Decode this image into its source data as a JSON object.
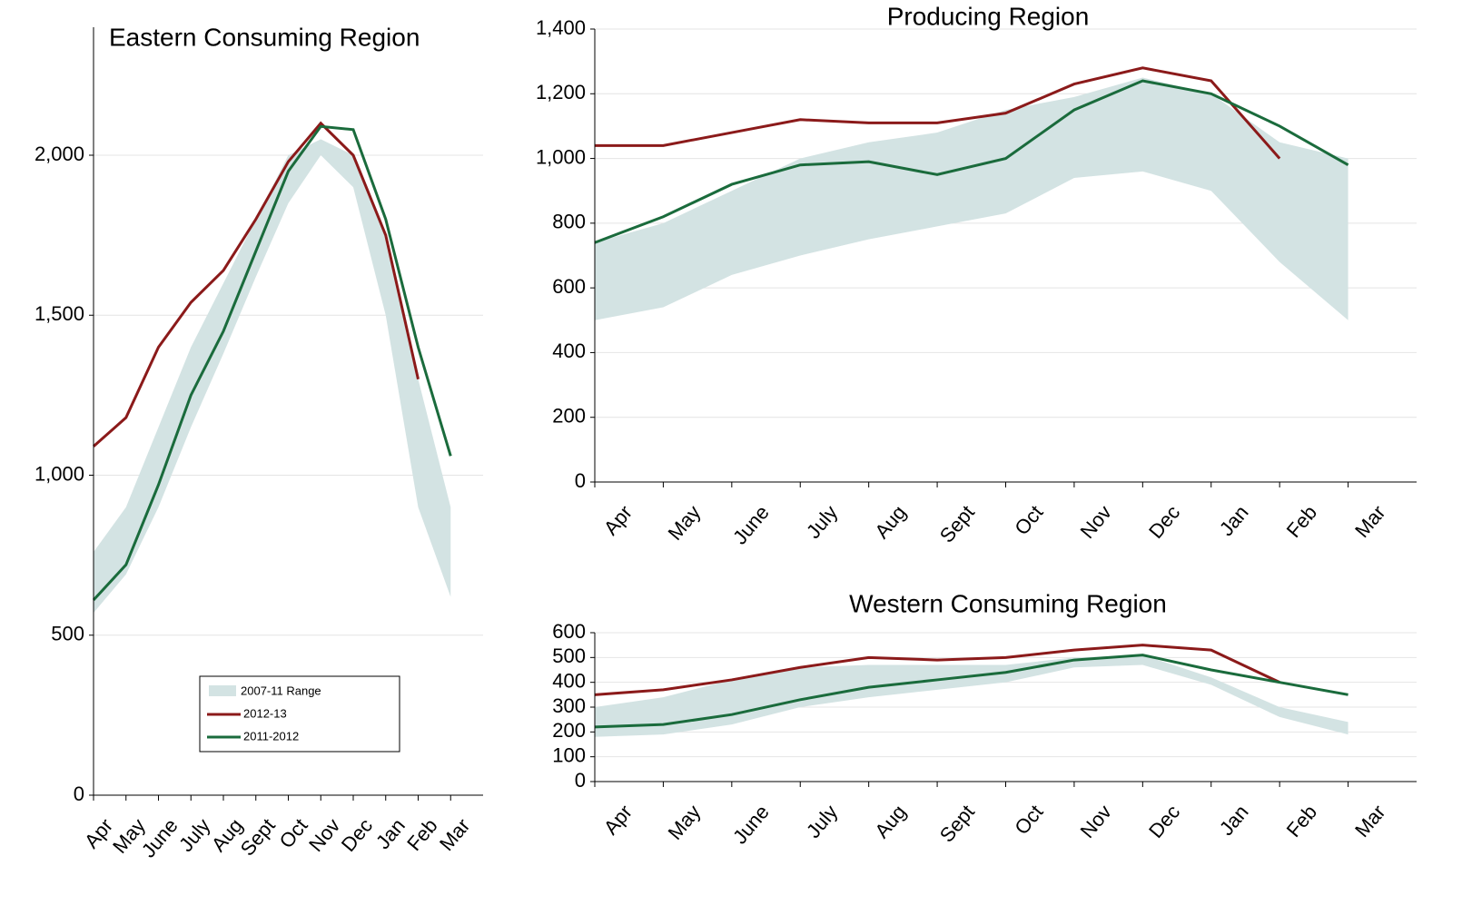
{
  "chart_data": [
    {
      "type": "line",
      "title": "Eastern Consuming Region",
      "categories": [
        "Apr",
        "May",
        "June",
        "July",
        "Aug",
        "Sept",
        "Oct",
        "Nov",
        "Dec",
        "Jan",
        "Feb",
        "Mar"
      ],
      "band": {
        "name": "2007-11 Range",
        "color": "#d3e3e3",
        "low": [
          570,
          690,
          900,
          1150,
          1380,
          1620,
          1850,
          2000,
          1900,
          1500,
          900,
          620
        ],
        "high": [
          760,
          900,
          1150,
          1400,
          1600,
          1800,
          2000,
          2050,
          2000,
          1750,
          1300,
          900
        ]
      },
      "series": [
        {
          "name": "2012-13",
          "color": "#8b1a1a",
          "values": [
            1090,
            1180,
            1400,
            1540,
            1640,
            1800,
            1980,
            2100,
            2000,
            1750,
            1300,
            null
          ]
        },
        {
          "name": "2011-2012",
          "color": "#1a6b3c",
          "values": [
            610,
            720,
            970,
            1250,
            1450,
            1700,
            1950,
            2090,
            2080,
            1800,
            1400,
            1060
          ]
        }
      ],
      "ylim": [
        0,
        2400
      ],
      "yticks": [
        0,
        500,
        {
          "value": 1000,
          "label": "1,000"
        },
        {
          "value": 1500,
          "label": "1,500"
        },
        {
          "value": 2000,
          "label": "2,000"
        }
      ],
      "grid": true,
      "legend": "lower-center"
    },
    {
      "type": "line",
      "title": "Producing Region",
      "categories": [
        "Apr",
        "May",
        "June",
        "July",
        "Aug",
        "Sept",
        "Oct",
        "Nov",
        "Dec",
        "Jan",
        "Feb",
        "Mar"
      ],
      "band": {
        "name": "2007-11 Range",
        "color": "#d3e3e3",
        "low": [
          500,
          540,
          640,
          700,
          750,
          790,
          830,
          940,
          960,
          900,
          680,
          500
        ],
        "high": [
          740,
          800,
          900,
          1000,
          1050,
          1080,
          1150,
          1190,
          1250,
          1200,
          1050,
          1000
        ]
      },
      "series": [
        {
          "name": "2012-13",
          "color": "#8b1a1a",
          "values": [
            1040,
            1040,
            1080,
            1120,
            1110,
            1110,
            1140,
            1230,
            1280,
            1240,
            1000,
            null
          ]
        },
        {
          "name": "2011-2012",
          "color": "#1a6b3c",
          "values": [
            740,
            820,
            920,
            980,
            990,
            950,
            1000,
            1150,
            1240,
            1200,
            1100,
            980
          ]
        }
      ],
      "ylim": [
        0,
        1400
      ],
      "yticks": [
        0,
        200,
        400,
        600,
        800,
        {
          "value": 1000,
          "label": "1,000"
        },
        {
          "value": 1200,
          "label": "1,200"
        },
        {
          "value": 1400,
          "label": "1,400"
        }
      ],
      "grid": true
    },
    {
      "type": "line",
      "title": "Western Consuming Region",
      "categories": [
        "Apr",
        "May",
        "June",
        "July",
        "Aug",
        "Sept",
        "Oct",
        "Nov",
        "Dec",
        "Jan",
        "Feb",
        "Mar"
      ],
      "band": {
        "name": "2007-11 Range",
        "color": "#d3e3e3",
        "low": [
          180,
          190,
          230,
          300,
          340,
          370,
          400,
          460,
          470,
          390,
          260,
          190
        ],
        "high": [
          300,
          340,
          410,
          460,
          470,
          470,
          470,
          500,
          510,
          420,
          300,
          240
        ]
      },
      "series": [
        {
          "name": "2012-13",
          "color": "#8b1a1a",
          "values": [
            350,
            370,
            410,
            460,
            500,
            490,
            500,
            530,
            550,
            530,
            400,
            null
          ]
        },
        {
          "name": "2011-2012",
          "color": "#1a6b3c",
          "values": [
            220,
            230,
            270,
            330,
            380,
            410,
            440,
            490,
            510,
            450,
            400,
            350
          ]
        }
      ],
      "ylim": [
        0,
        600
      ],
      "yticks": [
        0,
        100,
        200,
        300,
        400,
        500,
        600
      ],
      "grid": true
    }
  ]
}
